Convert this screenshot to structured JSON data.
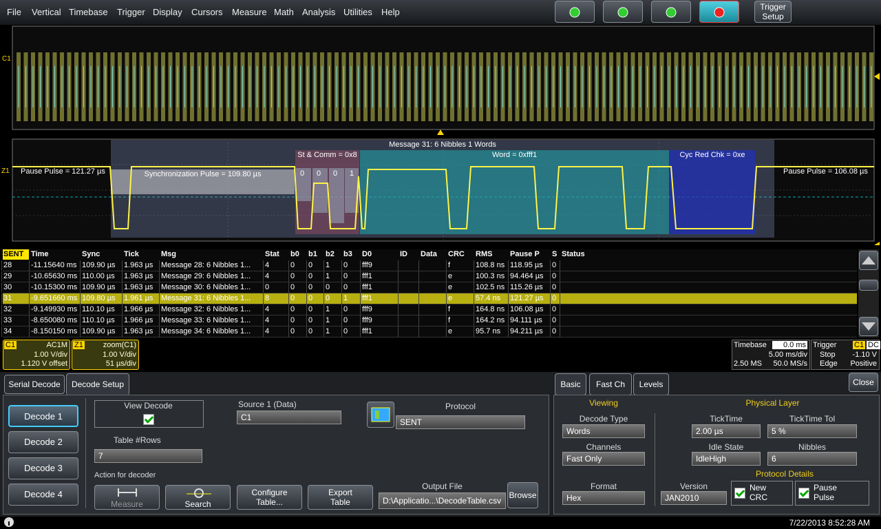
{
  "menu": [
    "File",
    "Vertical",
    "Timebase",
    "Trigger",
    "Display",
    "Cursors",
    "Measure",
    "Math",
    "Analysis",
    "Utilities",
    "Help"
  ],
  "toolbar": {
    "trigger_setup": "Trigger Setup"
  },
  "overview": {
    "channel": "C1"
  },
  "zoom": {
    "channel": "Z1",
    "message": "Message  31:  6 Nibbles  1 Words",
    "st_comm": "St & Comm = 0x8",
    "word": "Word = 0xfff1",
    "crc": "Cyc Red Chk = 0xe",
    "pause_left": "Pause Pulse = 121.27 µs",
    "sync": "Synchronization Pulse = 109.80 µs",
    "pause_right": "Pause Pulse = 106.08 µs",
    "bits": [
      "0",
      "0",
      "0",
      "1"
    ]
  },
  "table": {
    "columns": [
      "SENT",
      "Time",
      "Sync",
      "Tick",
      "Msg",
      "Stat",
      "b0",
      "b1",
      "b2",
      "b3",
      "D0",
      "ID",
      "Data",
      "CRC",
      "RMS",
      "Pause P",
      "S",
      "Status"
    ],
    "selected_row": 3,
    "rows": [
      [
        "28",
        "-11.15640 ms",
        "109.90 µs",
        "1.963 µs",
        "Message  28:  6 Nibbles  1...",
        "4",
        "0",
        "0",
        "1",
        "0",
        "fff9",
        null,
        null,
        "f",
        "108.8 ns",
        "118.95 µs",
        "0",
        null
      ],
      [
        "29",
        "-10.65630 ms",
        "110.00 µs",
        "1.963 µs",
        "Message  29:  6 Nibbles  1...",
        "4",
        "0",
        "0",
        "1",
        "0",
        "fff1",
        null,
        null,
        "e",
        "100.3 ns",
        "94.464 µs",
        "0",
        null
      ],
      [
        "30",
        "-10.15300 ms",
        "109.90 µs",
        "1.963 µs",
        "Message  30:  6 Nibbles  1...",
        "0",
        "0",
        "0",
        "0",
        "0",
        "fff1",
        null,
        null,
        "e",
        "102.5 ns",
        "115.26 µs",
        "0",
        null
      ],
      [
        "31",
        "-9.651660 ms",
        "109.80 µs",
        "1.961 µs",
        "Message  31:  6 Nibbles  1...",
        "8",
        "0",
        "0",
        "0",
        "1",
        "fff1",
        null,
        null,
        "e",
        "57.4 ns",
        "121.27 µs",
        "0",
        null
      ],
      [
        "32",
        "-9.149930 ms",
        "110.10 µs",
        "1.966 µs",
        "Message  32:  6 Nibbles  1...",
        "4",
        "0",
        "0",
        "1",
        "0",
        "fff9",
        null,
        null,
        "f",
        "164.8 ns",
        "106.08 µs",
        "0",
        null
      ],
      [
        "33",
        "-8.650080 ms",
        "110.10 µs",
        "1.966 µs",
        "Message  33:  6 Nibbles  1...",
        "4",
        "0",
        "0",
        "1",
        "0",
        "fff9",
        null,
        null,
        "f",
        "164.2 ns",
        "94.111 µs",
        "0",
        null
      ],
      [
        "34",
        "-8.150150 ms",
        "109.90 µs",
        "1.963 µs",
        "Message  34:  6 Nibbles  1...",
        "4",
        "0",
        "0",
        "1",
        "0",
        "fff1",
        null,
        null,
        "e",
        "95.7 ns",
        "94.211 µs",
        "0",
        null
      ]
    ]
  },
  "channels": [
    {
      "name": "C1",
      "coupling": "AC1M",
      "scale": "1.00 V/div",
      "offset": "1.120 V offset"
    },
    {
      "name": "Z1",
      "coupling": "zoom(C1)",
      "scale": "1.00 V/div",
      "offset": "51 µs/div"
    }
  ],
  "timebase": {
    "title": "Timebase",
    "delay": "0.0 ms",
    "scale": "5.00 ms/div",
    "samples": "2.50 MS",
    "rate": "50.0 MS/s"
  },
  "trigger": {
    "title": "Trigger",
    "source": "C1",
    "coupling": "DC",
    "mode": "Stop",
    "level": "-1.10 V",
    "type": "Edge",
    "slope": "Positive"
  },
  "tabs": [
    "Serial Decode",
    "Decode Setup"
  ],
  "decode_setup": {
    "decoders": [
      "Decode 1",
      "Decode 2",
      "Decode 3",
      "Decode 4"
    ],
    "view_decode": "View Decode",
    "table_rows_label": "Table #Rows",
    "table_rows": "7",
    "source_label": "Source 1 (Data)",
    "source": "C1",
    "protocol_label": "Protocol",
    "protocol": "SENT",
    "action_label": "Action for decoder",
    "measure": "Measure",
    "search": "Search",
    "configure": "Configure Table...",
    "export": "Export Table",
    "output_label": "Output File",
    "output": "D:\\Applicatio...\\DecodeTable.csv",
    "browse": "Browse"
  },
  "right_panel": {
    "tabs": [
      "Basic",
      "Fast Ch",
      "Levels"
    ],
    "close": "Close",
    "viewing": "Viewing",
    "decode_type_label": "Decode Type",
    "decode_type": "Words",
    "channels_label": "Channels",
    "channels": "Fast Only",
    "format_label": "Format",
    "format": "Hex",
    "physical": "Physical Layer",
    "ticktime_label": "TickTime",
    "ticktime": "2.00 µs",
    "tol_label": "TickTime Tol",
    "tol": "5 %",
    "idle_label": "Idle State",
    "idle": "IdleHigh",
    "nibbles_label": "Nibbles",
    "nibbles": "6",
    "protocol_details": "Protocol Details",
    "version_label": "Version",
    "version": "JAN2010",
    "new_crc": "New CRC",
    "pause_pulse": "Pause Pulse"
  },
  "status": {
    "datetime": "7/22/2013 8:52:28 AM"
  }
}
